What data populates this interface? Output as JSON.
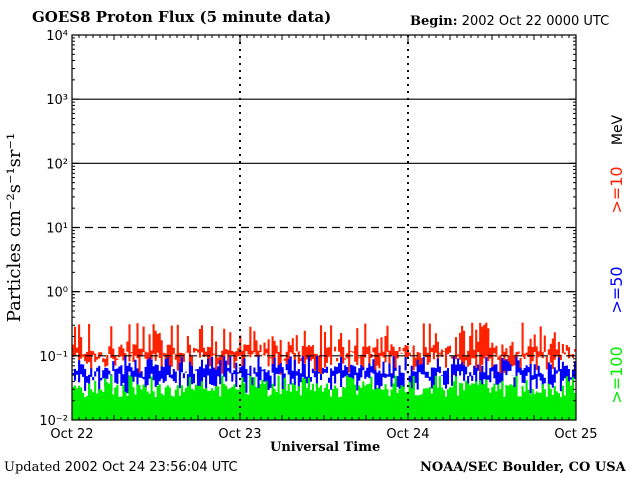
{
  "header": {
    "title": "GOES8 Proton Flux (5 minute data)",
    "begin_label": "Begin:",
    "begin_value": "2002 Oct 22 0000 UTC"
  },
  "footer": {
    "updated_label": "Updated",
    "updated_value": "2002 Oct 24 23:56:04 UTC",
    "credit": "NOAA/SEC Boulder, CO USA"
  },
  "chart_data": {
    "type": "line",
    "title": "GOES8 Proton Flux (5 minute data)",
    "xlabel": "Universal Time",
    "ylabel": "Particles cm⁻²s⁻¹sr⁻¹",
    "yscale": "log",
    "ylim": [
      0.01,
      10000
    ],
    "y_ticks": [
      "10⁻²",
      "10⁻¹",
      "10⁰",
      "10¹",
      "10²",
      "10³",
      "10⁴"
    ],
    "x_ticks": [
      "Oct 22",
      "Oct 23",
      "Oct 24",
      "Oct 25"
    ],
    "x_range_days": [
      0,
      3
    ],
    "threshold_lines": [
      10,
      100,
      1000
    ],
    "legend_unit": "MeV",
    "series": [
      {
        "name": ">=10",
        "color": "#ff2200",
        "baseline": 0.1,
        "peak_range": [
          0.15,
          0.35
        ]
      },
      {
        "name": ">=50",
        "color": "#0000ff",
        "baseline": 0.05,
        "peak_range": [
          0.06,
          0.1
        ]
      },
      {
        "name": ">=100",
        "color": "#00ee00",
        "baseline": 0.025,
        "peak_range": [
          0.03,
          0.05
        ]
      }
    ]
  }
}
